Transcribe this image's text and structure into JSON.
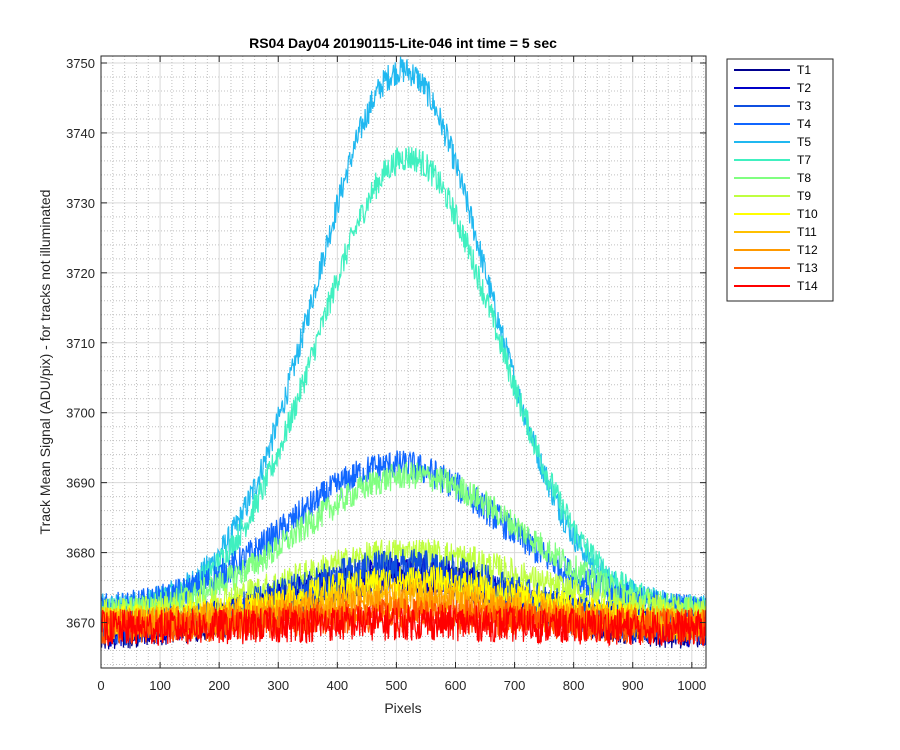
{
  "chart_data": {
    "type": "line",
    "title": "RS04 Day04 20190115-Lite-046 int time = 5 sec",
    "xlabel": "Pixels",
    "ylabel": "Track Mean Signal (ADU/pix) - for tracks not illuminated",
    "xlim": [
      0,
      1024
    ],
    "ylim": [
      3663.5,
      3751
    ],
    "x_ticks": [
      0,
      100,
      200,
      300,
      400,
      500,
      600,
      700,
      800,
      900,
      1000
    ],
    "y_ticks": [
      3670,
      3680,
      3690,
      3700,
      3710,
      3720,
      3730,
      3740,
      3750
    ],
    "grid": "major and minor",
    "legend_position": "outside-right",
    "series": [
      {
        "name": "T1",
        "color": "#00008f",
        "base": 3668.5,
        "peak": 3676.5,
        "center": 512,
        "width": 260,
        "noise": 2.6
      },
      {
        "name": "T2",
        "color": "#0000c8",
        "base": 3668.8,
        "peak": 3677.0,
        "center": 512,
        "width": 260,
        "noise": 2.6
      },
      {
        "name": "T3",
        "color": "#0f4fe0",
        "base": 3669.0,
        "peak": 3678.0,
        "center": 512,
        "width": 260,
        "noise": 2.6
      },
      {
        "name": "T4",
        "color": "#1066ff",
        "base": 3671.5,
        "peak": 3692.5,
        "center": 500,
        "width": 255,
        "noise": 2.2
      },
      {
        "name": "T5",
        "color": "#20b8f0",
        "base": 3672.0,
        "peak": 3749.0,
        "center": 510,
        "width": 205,
        "noise": 2.0
      },
      {
        "name": "T7",
        "color": "#40f0c0",
        "base": 3671.5,
        "peak": 3736.5,
        "center": 520,
        "width": 215,
        "noise": 2.0
      },
      {
        "name": "T8",
        "color": "#80ff80",
        "base": 3671.0,
        "peak": 3691.0,
        "center": 525,
        "width": 265,
        "noise": 2.0
      },
      {
        "name": "T9",
        "color": "#bfff40",
        "base": 3671.0,
        "peak": 3680.0,
        "center": 525,
        "width": 270,
        "noise": 2.2
      },
      {
        "name": "T10",
        "color": "#ffff00",
        "base": 3670.0,
        "peak": 3676.0,
        "center": 520,
        "width": 270,
        "noise": 2.2
      },
      {
        "name": "T11",
        "color": "#ffc000",
        "base": 3669.8,
        "peak": 3674.0,
        "center": 520,
        "width": 270,
        "noise": 2.4
      },
      {
        "name": "T12",
        "color": "#ff9900",
        "base": 3669.6,
        "peak": 3672.5,
        "center": 520,
        "width": 270,
        "noise": 2.4
      },
      {
        "name": "T13",
        "color": "#ff5500",
        "base": 3669.4,
        "peak": 3671.0,
        "center": 520,
        "width": 270,
        "noise": 2.5
      },
      {
        "name": "T14",
        "color": "#ff0000",
        "base": 3669.2,
        "peak": 3670.0,
        "center": 520,
        "width": 270,
        "noise": 2.6
      }
    ]
  }
}
